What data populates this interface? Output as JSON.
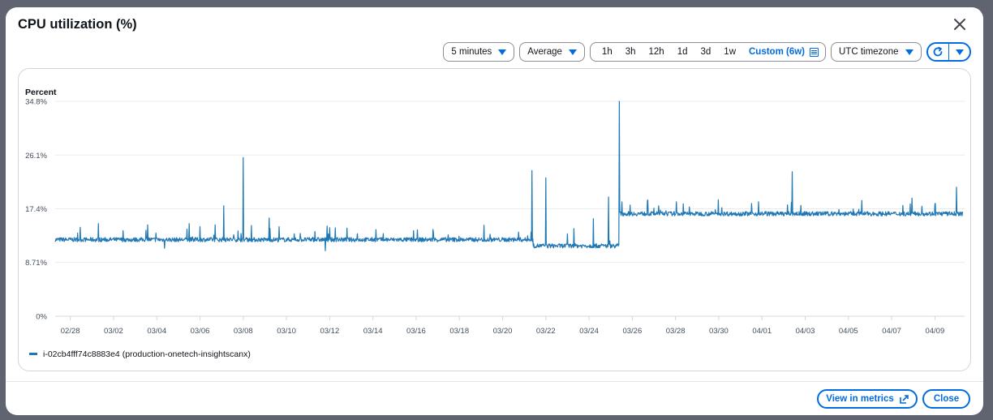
{
  "modal": {
    "title": "CPU utilization (%)",
    "close_icon": "close-icon"
  },
  "toolbar": {
    "period": "5 minutes",
    "statistic": "Average",
    "ranges": [
      "1h",
      "3h",
      "12h",
      "1d",
      "3d",
      "1w"
    ],
    "custom_range": "Custom (6w)",
    "custom_icon": "calendar-icon",
    "timezone": "UTC timezone",
    "refresh_icon": "refresh-icon",
    "refresh_menu_icon": "caret-down-icon"
  },
  "footer": {
    "view_in_metrics": "View in metrics",
    "view_in_metrics_icon": "external-link-icon",
    "close": "Close"
  },
  "colors": {
    "series": "#1f77b4",
    "accent": "#006ce0",
    "grid": "#e9ebed",
    "axis_text": "#414d5c"
  },
  "chart_data": {
    "type": "line",
    "title": "CPU utilization (%)",
    "ylabel": "Percent",
    "xlabel": "",
    "ylim": [
      0,
      34.8
    ],
    "y_ticks": [
      "34.8%",
      "26.1%",
      "17.4%",
      "8.71%",
      "0%"
    ],
    "y_tick_values": [
      34.8,
      26.1,
      17.4,
      8.71,
      0
    ],
    "x_ticks": [
      "02/28",
      "03/02",
      "03/04",
      "03/06",
      "03/08",
      "03/10",
      "03/12",
      "03/14",
      "03/16",
      "03/18",
      "03/20",
      "03/22",
      "03/24",
      "03/26",
      "03/28",
      "03/30",
      "04/01",
      "04/03",
      "04/05",
      "04/07",
      "04/09"
    ],
    "x_range_days": [
      -0.7,
      41.3
    ],
    "grid": true,
    "legend_position": "bottom-left",
    "series": [
      {
        "name": "i-02cb4fff74c8883e4 (production-onetech-insightscanx)",
        "baseline_segments": [
          {
            "from_day": -0.7,
            "to_day": 21.4,
            "value": 12.4
          },
          {
            "from_day": 21.4,
            "to_day": 25.4,
            "value": 11.4
          },
          {
            "from_day": 25.4,
            "to_day": 41.3,
            "value": 16.6
          }
        ],
        "spikes": [
          {
            "day": 1.3,
            "value": 15.0
          },
          {
            "day": 4.35,
            "value": 11.0
          },
          {
            "day": 5.5,
            "value": 15.0
          },
          {
            "day": 6.0,
            "value": 14.5
          },
          {
            "day": 7.1,
            "value": 17.9
          },
          {
            "day": 8.0,
            "value": 25.7
          },
          {
            "day": 9.2,
            "value": 15.9
          },
          {
            "day": 11.8,
            "value": 10.6
          },
          {
            "day": 21.35,
            "value": 23.6
          },
          {
            "day": 22.0,
            "value": 22.4
          },
          {
            "day": 23.3,
            "value": 14.2
          },
          {
            "day": 24.2,
            "value": 15.8
          },
          {
            "day": 24.9,
            "value": 19.3
          },
          {
            "day": 25.4,
            "value": 34.8
          },
          {
            "day": 25.9,
            "value": 18.0
          },
          {
            "day": 27.0,
            "value": 17.5
          },
          {
            "day": 33.4,
            "value": 23.4
          },
          {
            "day": 41.0,
            "value": 20.9
          }
        ]
      }
    ]
  }
}
